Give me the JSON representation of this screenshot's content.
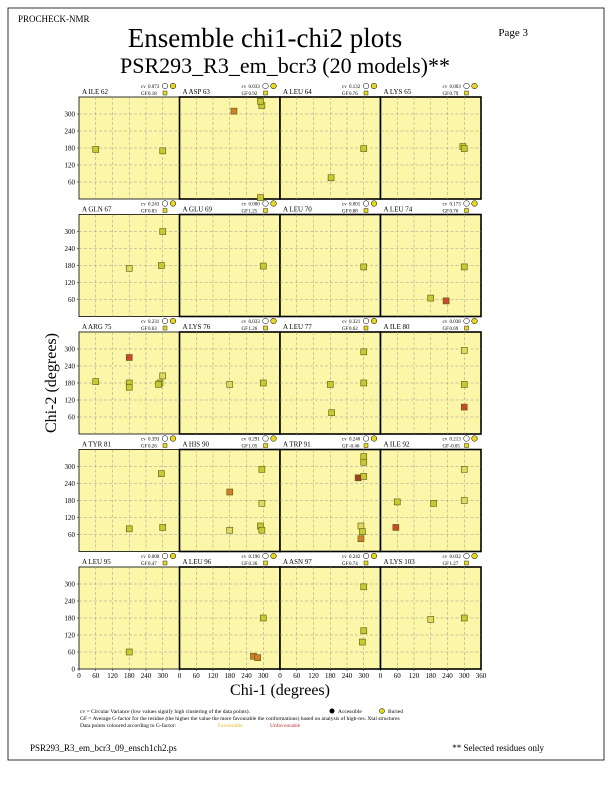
{
  "header": {
    "program": "PROCHECK-NMR",
    "title": "Ensemble chi1-chi2 plots",
    "subtitle": "PSR293_R3_em_bcr3 (20 models)**",
    "page": "Page  3"
  },
  "axes": {
    "xlabel": "Chi-1 (degrees)",
    "ylabel": "Chi-2 (degrees)",
    "xlim": [
      0,
      360
    ],
    "xticks": [
      0,
      60,
      120,
      180,
      240,
      300,
      360
    ],
    "ylim": [
      0,
      360
    ],
    "yticks": [
      0,
      60,
      120,
      180,
      240,
      300
    ],
    "grid": true,
    "cv_label": "cv",
    "gf_label": "GF"
  },
  "chart_data": [
    {
      "type": "scatter",
      "title": "A ILE 62",
      "cv": "0.073",
      "gf": "0.18",
      "x": [
        60,
        300
      ],
      "y": [
        175,
        170
      ],
      "colors": [
        "#c8c832",
        "#c8c832"
      ]
    },
    {
      "type": "scatter",
      "title": "A ASP 63",
      "cv": "0.033",
      "gf": "0.92",
      "x": [
        195,
        295,
        290,
        290
      ],
      "y": [
        310,
        330,
        345,
        5
      ],
      "colors": [
        "#d0802a",
        "#c8c832",
        "#c8c832",
        "#c8c832"
      ]
    },
    {
      "type": "scatter",
      "title": "A LEU 64",
      "cv": "0.132",
      "gf": "0.76",
      "x": [
        300,
        183
      ],
      "y": [
        178,
        75
      ],
      "colors": [
        "#c8c832",
        "#c8c832"
      ]
    },
    {
      "type": "scatter",
      "title": "A LYS 65",
      "cv": "0.003",
      "gf": "0.79",
      "x": [
        295,
        300
      ],
      "y": [
        185,
        178
      ],
      "colors": [
        "#c8c832",
        "#c8c832"
      ]
    },
    {
      "type": "scatter",
      "title": "A GLN 67",
      "cv": "0.243",
      "gf": "0.83",
      "x": [
        300,
        180,
        295
      ],
      "y": [
        300,
        170,
        180
      ],
      "colors": [
        "#c8c832",
        "#e0d860",
        "#c8c832"
      ]
    },
    {
      "type": "scatter",
      "title": "A GLU 69",
      "cv": "0.000",
      "gf": "1.25",
      "x": [
        300
      ],
      "y": [
        178
      ],
      "colors": [
        "#c8c832"
      ]
    },
    {
      "type": "scatter",
      "title": "A LEU 70",
      "cv": "0.001",
      "gf": "0.88",
      "x": [
        300
      ],
      "y": [
        175
      ],
      "colors": [
        "#c8c832"
      ]
    },
    {
      "type": "scatter",
      "title": "A LEU 74",
      "cv": "0.173",
      "gf": "0.76",
      "x": [
        180,
        235,
        300
      ],
      "y": [
        65,
        55,
        175
      ],
      "colors": [
        "#c8c832",
        "#c84a2a",
        "#c8c832"
      ]
    },
    {
      "type": "scatter",
      "title": "A ARG 75",
      "cv": "0.231",
      "gf": "0.63",
      "x": [
        60,
        180,
        180,
        180,
        290,
        285,
        300
      ],
      "y": [
        185,
        270,
        180,
        165,
        180,
        175,
        205
      ],
      "colors": [
        "#c8c832",
        "#c84a2a",
        "#c8c832",
        "#c8c832",
        "#c8c832",
        "#c8c832",
        "#e0d860"
      ]
    },
    {
      "type": "scatter",
      "title": "A LYS 76",
      "cv": "0.033",
      "gf": "1.26",
      "x": [
        180,
        300
      ],
      "y": [
        175,
        180
      ],
      "colors": [
        "#e0d860",
        "#c8c832"
      ]
    },
    {
      "type": "scatter",
      "title": "A LEU 77",
      "cv": "0.321",
      "gf": "0.62",
      "x": [
        180,
        185,
        300,
        300
      ],
      "y": [
        175,
        75,
        290,
        180
      ],
      "colors": [
        "#c8c832",
        "#c8c832",
        "#c8c832",
        "#c8c832"
      ]
    },
    {
      "type": "scatter",
      "title": "A ILE 80",
      "cv": "0.038",
      "gf": "0.69",
      "x": [
        300,
        300,
        300
      ],
      "y": [
        295,
        175,
        95
      ],
      "colors": [
        "#e0d860",
        "#c8c832",
        "#c84a2a"
      ]
    },
    {
      "type": "scatter",
      "title": "A TYR 81",
      "cv": "0.393",
      "gf": "0.26",
      "x": [
        295,
        180,
        300
      ],
      "y": [
        275,
        80,
        85
      ],
      "colors": [
        "#c8c832",
        "#c8c832",
        "#c8c832"
      ]
    },
    {
      "type": "scatter",
      "title": "A HIS 90",
      "cv": "0.291",
      "gf": "1.05",
      "x": [
        180,
        180,
        295,
        295,
        290,
        295
      ],
      "y": [
        210,
        75,
        290,
        170,
        90,
        75
      ],
      "colors": [
        "#d0802a",
        "#e0d860",
        "#c8c832",
        "#e0d860",
        "#c8c832",
        "#c8c832"
      ]
    },
    {
      "type": "scatter",
      "title": "A TRP 91",
      "cv": "0.240",
      "gf": "-0.46",
      "x": [
        300,
        300,
        280,
        300,
        290,
        295,
        290
      ],
      "y": [
        335,
        315,
        260,
        265,
        90,
        70,
        45
      ],
      "colors": [
        "#c8c832",
        "#c8c832",
        "#a0402a",
        "#c8c832",
        "#e0d860",
        "#c8c832",
        "#d0802a"
      ]
    },
    {
      "type": "scatter",
      "title": "A ILE 92",
      "cv": "0.213",
      "gf": "-0.05",
      "x": [
        60,
        55,
        190,
        300,
        300
      ],
      "y": [
        175,
        85,
        170,
        290,
        180
      ],
      "colors": [
        "#c8c832",
        "#c84a2a",
        "#c8c832",
        "#e0d860",
        "#e0d860"
      ]
    },
    {
      "type": "scatter",
      "title": "A LEU 95",
      "cv": "0.000",
      "gf": "0.47",
      "x": [
        180
      ],
      "y": [
        60
      ],
      "colors": [
        "#c8c832"
      ]
    },
    {
      "type": "scatter",
      "title": "A LEU 96",
      "cv": "0.196",
      "gf": "0.36",
      "x": [
        300,
        265,
        280
      ],
      "y": [
        180,
        45,
        40
      ],
      "colors": [
        "#c8c832",
        "#d0802a",
        "#d0802a"
      ]
    },
    {
      "type": "scatter",
      "title": "A ASN 97",
      "cv": "0.242",
      "gf": "0.74",
      "x": [
        300,
        300,
        295
      ],
      "y": [
        290,
        135,
        95
      ],
      "colors": [
        "#c8c832",
        "#c8c832",
        "#c8c832"
      ]
    },
    {
      "type": "scatter",
      "title": "A LYS 103",
      "cv": "0.032",
      "gf": "1.27",
      "x": [
        180,
        300
      ],
      "y": [
        175,
        180
      ],
      "colors": [
        "#e0d860",
        "#c8c832"
      ]
    }
  ],
  "footer": {
    "cv_note": "cv = Circular Variance (low values signify high clustering of the data points).",
    "accessible": "Accessible",
    "buried": "Buried",
    "gf_note": "GF = Average G-factor for the residue (the higher the value the more favourable the conformations) based on analysis of high-res. Xtal structures",
    "colour_note": "Data points coloured according to G-factor:",
    "favourable": "Favourable",
    "unfavourable": "Unfavourable",
    "filename": "PSR293_R3_em_bcr3_09_ensch1ch2.ps",
    "selected": "** Selected residues only"
  }
}
